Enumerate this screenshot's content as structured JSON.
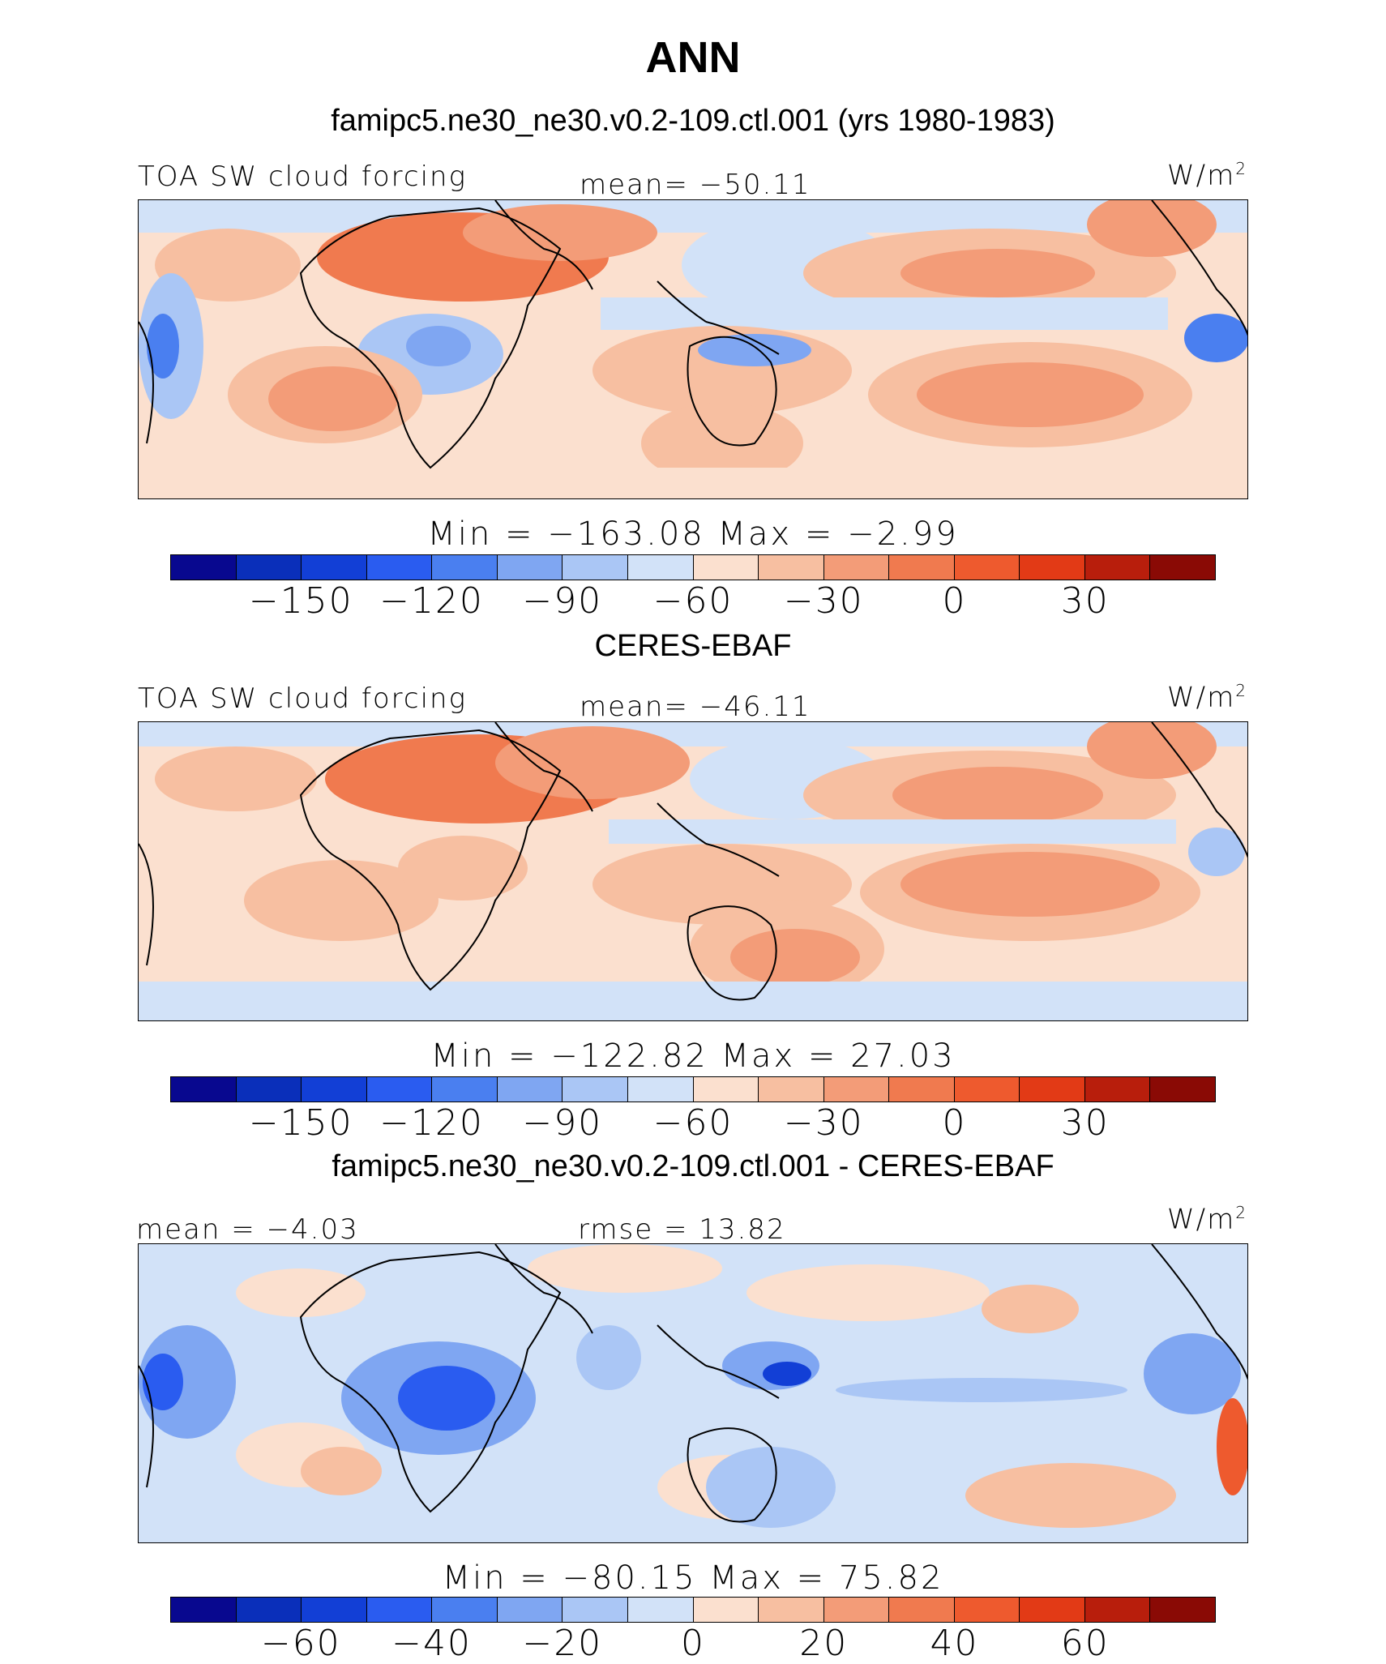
{
  "header": {
    "title": "ANN",
    "subtitle": "famipc5.ne30_ne30.v0.2-109.ctl.001 (yrs 1980-1983)"
  },
  "palette": {
    "twelve": [
      "#08088f",
      "#0a2fba",
      "#123fd6",
      "#2a5cf0",
      "#4a7ff0",
      "#7fa6f2",
      "#aac6f5",
      "#d2e2f8",
      "#fbe0cf",
      "#f7bfa1",
      "#f39c78",
      "#f07a4f",
      "#ee5a2e",
      "#e23a16",
      "#b81e0c",
      "#8a0a05"
    ],
    "bg_model": "#fbe0cf",
    "land_line": "#000000"
  },
  "panels": [
    {
      "id": "model",
      "variable": "TOA SW cloud forcing",
      "stat": "mean=  −50.11",
      "unit": "W/m",
      "unit_sup": "2",
      "minmax": "Min  =  −163.08  Max  =   −2.99",
      "ticks": [
        "−150",
        "−120",
        "−90",
        "−60",
        "−30",
        "0",
        "30"
      ]
    },
    {
      "id": "obs",
      "label": "CERES-EBAF",
      "variable": "TOA SW cloud forcing",
      "stat": "mean=  −46.11",
      "unit": "W/m",
      "unit_sup": "2",
      "minmax": "Min  =  −122.82  Max  =   27.03",
      "ticks": [
        "−150",
        "−120",
        "−90",
        "−60",
        "−30",
        "0",
        "30"
      ]
    },
    {
      "id": "diff",
      "label": "famipc5.ne30_ne30.v0.2-109.ctl.001 - CERES-EBAF",
      "stat_left": "mean  =   −4.03",
      "stat": "rmse  =   13.82",
      "unit": "W/m",
      "unit_sup": "2",
      "minmax": "Min  =  −80.15  Max  =   75.82",
      "ticks": [
        "−60",
        "−40",
        "−20",
        "0",
        "20",
        "40",
        "60"
      ]
    }
  ]
}
